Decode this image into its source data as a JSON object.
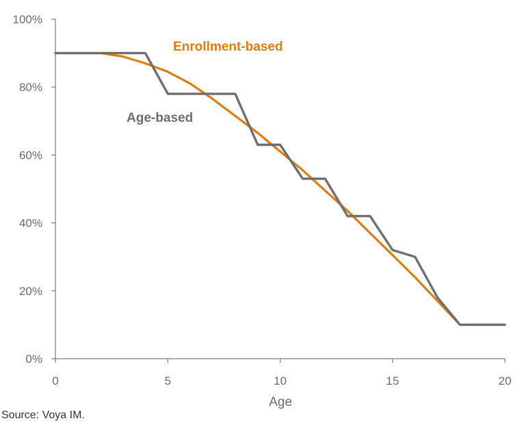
{
  "chart_data": {
    "type": "line",
    "title": "",
    "xlabel": "Age",
    "ylabel": "",
    "xlim": [
      0,
      20
    ],
    "ylim": [
      0,
      100
    ],
    "x_ticks": [
      0,
      5,
      10,
      15,
      20
    ],
    "x_tick_labels": [
      "0",
      "5",
      "10",
      "15",
      "20"
    ],
    "y_ticks": [
      0,
      20,
      40,
      60,
      80,
      100
    ],
    "y_tick_labels": [
      "0%",
      "20%",
      "40%",
      "60%",
      "80%",
      "100%"
    ],
    "grid": false,
    "legend": "inline labels",
    "series": [
      {
        "name": "Enrollment-based",
        "color": "#e07b10",
        "x": [
          0,
          1,
          2,
          3,
          4,
          5,
          6,
          7,
          8,
          9,
          10,
          11,
          12,
          13,
          14,
          15,
          16,
          17,
          18,
          19,
          20
        ],
        "values": [
          90,
          90,
          90,
          89,
          87,
          84.5,
          81,
          76.5,
          71.5,
          66.5,
          61,
          55.5,
          49.5,
          43.5,
          37,
          30.5,
          24,
          17,
          10,
          10,
          10
        ]
      },
      {
        "name": "Age-based",
        "color": "#6e6e6e",
        "x": [
          0,
          4,
          5,
          8,
          9,
          10,
          11,
          12,
          13,
          14,
          15,
          16,
          17,
          18,
          20
        ],
        "values": [
          90,
          90,
          78,
          78,
          63,
          63,
          53,
          53,
          42,
          42,
          32,
          30,
          18,
          10,
          10
        ]
      }
    ]
  },
  "source_note": "Source: Voya IM."
}
